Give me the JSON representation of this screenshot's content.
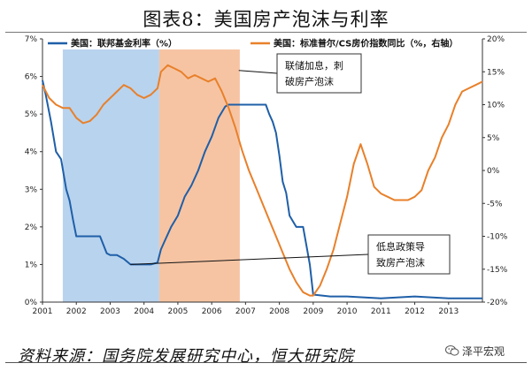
{
  "header": {
    "title": "图表8：美国房产泡沫与利率"
  },
  "footer": {
    "source": "资料来源：国务院发展研究中心，恒大研究院",
    "watermark": "泽平宏观",
    "watermark_icon": "wechat-icon"
  },
  "chart_data": {
    "type": "line",
    "title": "图表8：美国房产泡沫与利率",
    "xlabel": "",
    "ylabel": "",
    "x_ticks": [
      "2001",
      "2002",
      "2003",
      "2004",
      "2005",
      "2006",
      "2007",
      "2008",
      "2009",
      "2010",
      "2011",
      "2012",
      "2013"
    ],
    "xlim": [
      2001.0,
      2014.0
    ],
    "ylim_left": [
      0,
      7
    ],
    "ylim_right": [
      -20,
      20
    ],
    "left_ticks": [
      "0%",
      "1%",
      "2%",
      "3%",
      "4%",
      "5%",
      "6%",
      "7%"
    ],
    "right_ticks": [
      "-20%",
      "-15%",
      "-10%",
      "-5%",
      "0%",
      "5%",
      "10%",
      "15%",
      "20%"
    ],
    "legend_position": "top",
    "grid": false,
    "colors": {
      "fed": "#1f5fa8",
      "cs": "#e8802a",
      "band_blue": "#b8d3ee",
      "band_orange": "#f6c4a3"
    },
    "series": [
      {
        "name": "美国：联邦基金利率（%）",
        "axis": "left",
        "x": [
          2001.0,
          2001.1,
          2001.25,
          2001.4,
          2001.55,
          2001.7,
          2001.8,
          2001.9,
          2002.0,
          2002.1,
          2002.3,
          2002.5,
          2002.7,
          2002.9,
          2003.0,
          2003.2,
          2003.4,
          2003.6,
          2003.8,
          2004.0,
          2004.2,
          2004.4,
          2004.5,
          2004.6,
          2004.8,
          2005.0,
          2005.2,
          2005.4,
          2005.6,
          2005.8,
          2006.0,
          2006.2,
          2006.4,
          2006.5,
          2006.6,
          2006.8,
          2007.0,
          2007.2,
          2007.4,
          2007.6,
          2007.7,
          2007.8,
          2007.9,
          2008.0,
          2008.1,
          2008.2,
          2008.3,
          2008.5,
          2008.7,
          2008.8,
          2008.9,
          2009.0,
          2009.5,
          2010.0,
          2011.0,
          2012.0,
          2013.0,
          2014.0
        ],
        "values": [
          5.9,
          5.5,
          4.8,
          4.0,
          3.8,
          3.0,
          2.7,
          2.2,
          1.75,
          1.75,
          1.75,
          1.75,
          1.75,
          1.3,
          1.25,
          1.25,
          1.15,
          1.0,
          1.0,
          1.0,
          1.0,
          1.05,
          1.4,
          1.6,
          2.0,
          2.3,
          2.8,
          3.1,
          3.5,
          4.0,
          4.4,
          4.9,
          5.2,
          5.25,
          5.25,
          5.25,
          5.25,
          5.25,
          5.25,
          5.25,
          5.0,
          4.8,
          4.5,
          3.9,
          3.2,
          2.9,
          2.3,
          2.0,
          2.0,
          1.5,
          1.0,
          0.2,
          0.15,
          0.15,
          0.1,
          0.15,
          0.1,
          0.1
        ]
      },
      {
        "name": "美国：标准普尔/CS房价指数同比（%，右轴）",
        "axis": "right",
        "x": [
          2001.0,
          2001.2,
          2001.4,
          2001.6,
          2001.8,
          2002.0,
          2002.2,
          2002.4,
          2002.6,
          2002.8,
          2003.0,
          2003.2,
          2003.4,
          2003.6,
          2003.8,
          2004.0,
          2004.2,
          2004.4,
          2004.5,
          2004.7,
          2004.9,
          2005.1,
          2005.3,
          2005.5,
          2005.7,
          2005.9,
          2006.1,
          2006.3,
          2006.5,
          2006.7,
          2006.9,
          2007.1,
          2007.3,
          2007.5,
          2007.7,
          2007.9,
          2008.1,
          2008.3,
          2008.5,
          2008.7,
          2008.9,
          2009.0,
          2009.2,
          2009.4,
          2009.6,
          2009.8,
          2010.0,
          2010.2,
          2010.4,
          2010.6,
          2010.8,
          2011.0,
          2011.2,
          2011.4,
          2011.6,
          2011.8,
          2012.0,
          2012.2,
          2012.4,
          2012.6,
          2012.8,
          2013.0,
          2013.2,
          2013.4,
          2013.6,
          2013.8,
          2014.0
        ],
        "values": [
          13.0,
          11.0,
          10.0,
          9.5,
          9.5,
          8.0,
          7.2,
          7.5,
          8.5,
          10.0,
          11.0,
          12.0,
          13.0,
          12.5,
          11.5,
          11.0,
          11.5,
          12.5,
          15.0,
          16.0,
          15.5,
          15.0,
          14.0,
          14.5,
          14.0,
          13.5,
          14.0,
          12.0,
          9.5,
          6.5,
          3.0,
          0.0,
          -2.5,
          -5.0,
          -7.5,
          -10.0,
          -12.5,
          -15.0,
          -17.0,
          -18.5,
          -19.0,
          -19.0,
          -17.5,
          -15.0,
          -12.0,
          -8.0,
          -4.0,
          1.0,
          4.0,
          1.0,
          -2.5,
          -3.5,
          -4.0,
          -4.5,
          -4.5,
          -4.5,
          -4.0,
          -3.0,
          0.0,
          2.0,
          5.0,
          7.0,
          10.0,
          12.0,
          12.5,
          13.0,
          13.5
        ]
      }
    ],
    "shaded_periods": [
      {
        "from": 2001.6,
        "to": 2004.45,
        "color": "#b8d3ee"
      },
      {
        "from": 2004.45,
        "to": 2006.83,
        "color": "#f6c4a3"
      }
    ],
    "annotations": [
      {
        "lines": [
          "联储加息，刺",
          "破房产泡沫"
        ],
        "target_x": 2006.8,
        "target_axis": "right",
        "target_value": 15.2
      },
      {
        "lines": [
          "低息政策导",
          "致房产泡沫"
        ],
        "target_x": 2003.6,
        "target_axis": "left",
        "target_value": 1.0
      }
    ]
  }
}
